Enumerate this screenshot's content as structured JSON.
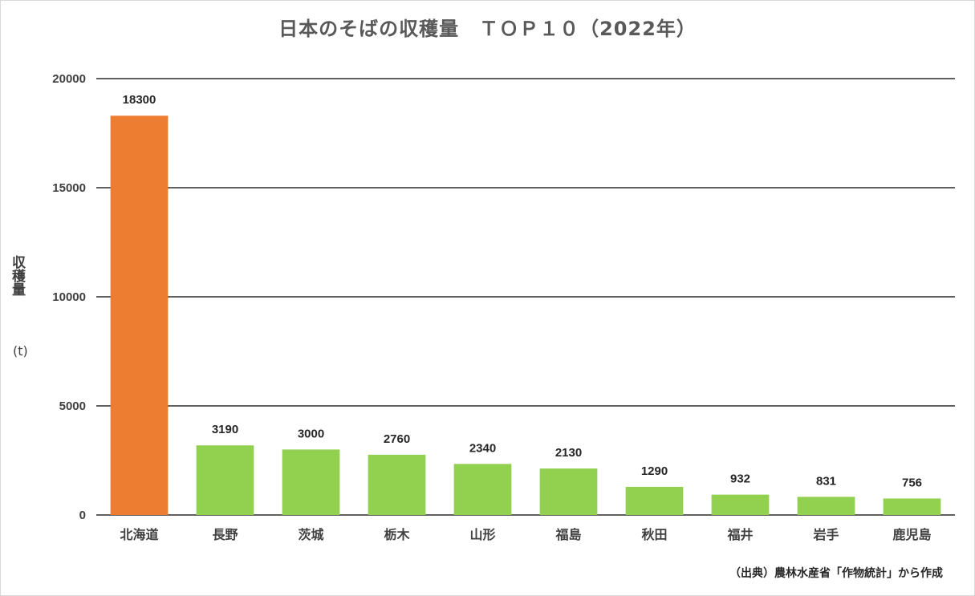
{
  "chart_data": {
    "type": "bar",
    "title": "日本のそばの収穫量　ＴＯＰ１０（2022年）",
    "ylabel": "収穫量",
    "yunit": "(t)",
    "source": "（出典）農林水産省「作物統計」から作成",
    "categories": [
      "北海道",
      "長野",
      "茨城",
      "栃木",
      "山形",
      "福島",
      "秋田",
      "福井",
      "岩手",
      "鹿児島"
    ],
    "values": [
      18300,
      3190,
      3000,
      2760,
      2340,
      2130,
      1290,
      932,
      831,
      756
    ],
    "ylim": [
      0,
      20000
    ],
    "yticks": [
      0,
      5000,
      10000,
      15000,
      20000
    ],
    "grid": true,
    "legend": "none",
    "colors": {
      "highlight": "#ed7d31",
      "default": "#92d050",
      "gridline": "#000000"
    },
    "highlight_index": 0
  }
}
